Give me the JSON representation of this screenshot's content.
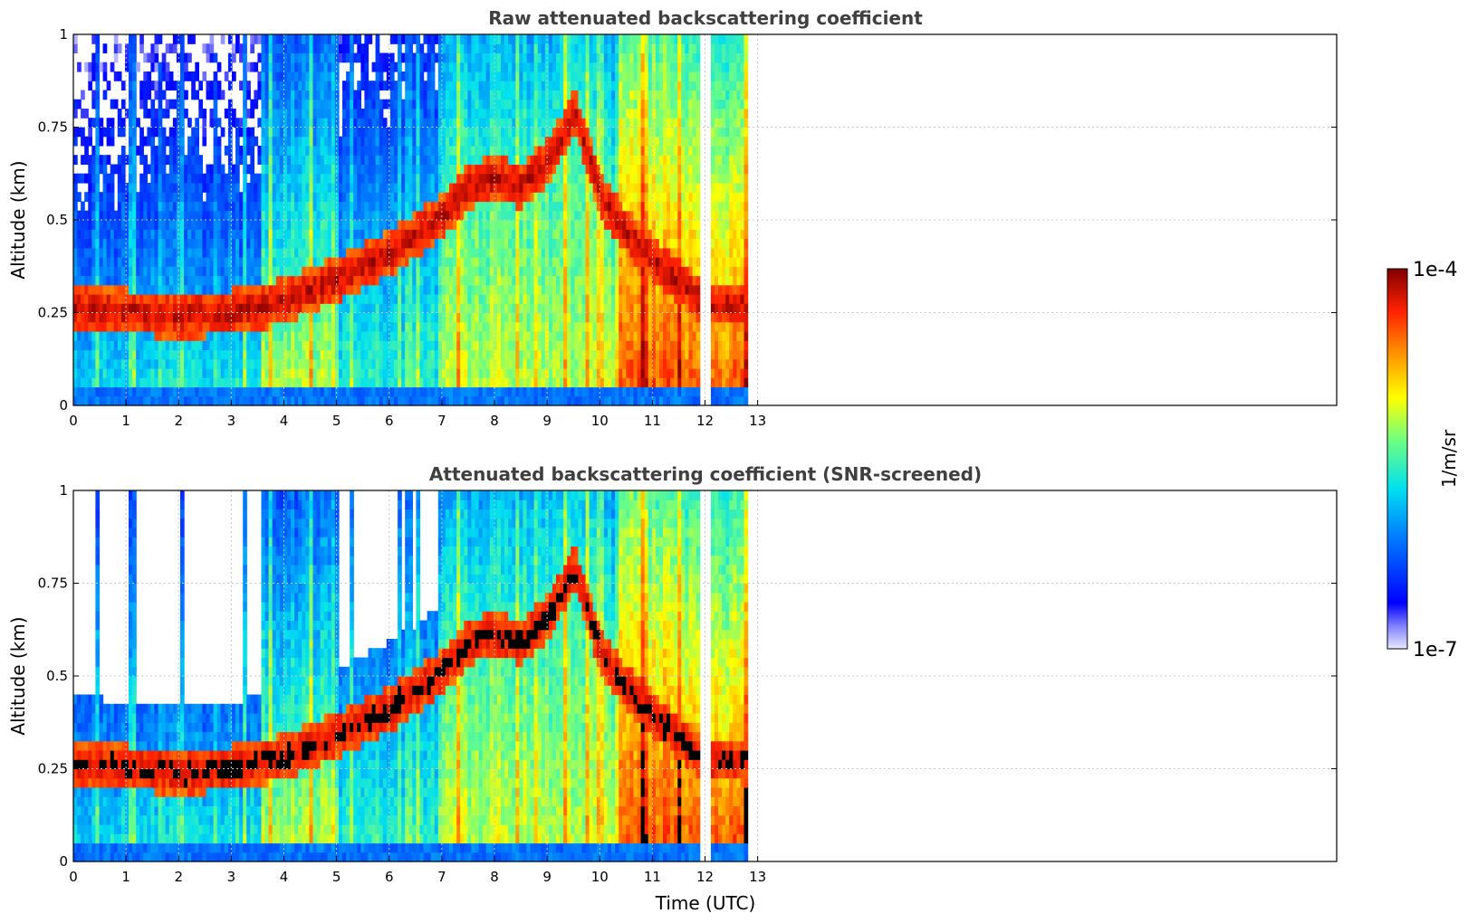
{
  "chart_data": [
    {
      "type": "heatmap",
      "title": "Raw attenuated backscattering coefficient",
      "xlabel": "",
      "ylabel": "Altitude (km)",
      "xlim": [
        0,
        24
      ],
      "ylim": [
        0,
        1
      ],
      "xticks": [
        "0",
        "1",
        "2",
        "3",
        "4",
        "5",
        "6",
        "7",
        "8",
        "9",
        "10",
        "11",
        "12",
        "13"
      ],
      "yticks": [
        "0",
        "0.25",
        "0.5",
        "0.75",
        "1"
      ],
      "data_extent_hours": [
        0,
        12.8
      ],
      "data_gap_hours": [
        11.9,
        12.05
      ],
      "grid": true,
      "screened": false,
      "colorscale": "jet",
      "layer_series": [
        {
          "name": "",
          "x": [
            0,
            1,
            2,
            3,
            4,
            5,
            6,
            7,
            7.5,
            8,
            8.5,
            9,
            9.5,
            10,
            10.5,
            11,
            11.5,
            11.9,
            12.1,
            12.8
          ],
          "y": [
            0.25,
            0.24,
            0.23,
            0.24,
            0.27,
            0.33,
            0.4,
            0.5,
            0.58,
            0.6,
            0.58,
            0.65,
            0.78,
            0.55,
            0.45,
            0.38,
            0.32,
            0.27,
            0.26,
            0.26
          ]
        }
      ]
    },
    {
      "type": "heatmap",
      "title": "Attenuated backscattering coefficient (SNR-screened)",
      "xlabel": "Time (UTC)",
      "ylabel": "Altitude (km)",
      "xlim": [
        0,
        24
      ],
      "ylim": [
        0,
        1
      ],
      "xticks": [
        "0",
        "1",
        "2",
        "3",
        "4",
        "5",
        "6",
        "7",
        "8",
        "9",
        "10",
        "11",
        "12",
        "13"
      ],
      "yticks": [
        "0",
        "0.25",
        "0.5",
        "0.75",
        "1"
      ],
      "data_extent_hours": [
        0,
        12.8
      ],
      "data_gap_hours": [
        11.9,
        12.05
      ],
      "grid": true,
      "screened": true,
      "colorscale": "jet",
      "layer_series": [
        {
          "name": "",
          "x": [
            0,
            1,
            2,
            3,
            4,
            5,
            6,
            7,
            7.5,
            8,
            8.5,
            9,
            9.5,
            10,
            10.5,
            11,
            11.5,
            11.9,
            12.1,
            12.8
          ],
          "y": [
            0.25,
            0.24,
            0.23,
            0.24,
            0.27,
            0.33,
            0.4,
            0.5,
            0.58,
            0.6,
            0.58,
            0.65,
            0.78,
            0.55,
            0.45,
            0.38,
            0.32,
            0.27,
            0.26,
            0.26
          ]
        }
      ]
    }
  ],
  "colorbar": {
    "min_label": "1e-7",
    "max_label": "1e-4",
    "unit_label": "1/m/sr",
    "colors": [
      "#e8e8ff",
      "#b0b0ff",
      "#7070ff",
      "#0000ff",
      "#0060ff",
      "#00b0ff",
      "#00e0e0",
      "#40ffb0",
      "#a0ff50",
      "#ffff00",
      "#ffc000",
      "#ff8000",
      "#ff3000",
      "#d00000",
      "#800000"
    ]
  }
}
